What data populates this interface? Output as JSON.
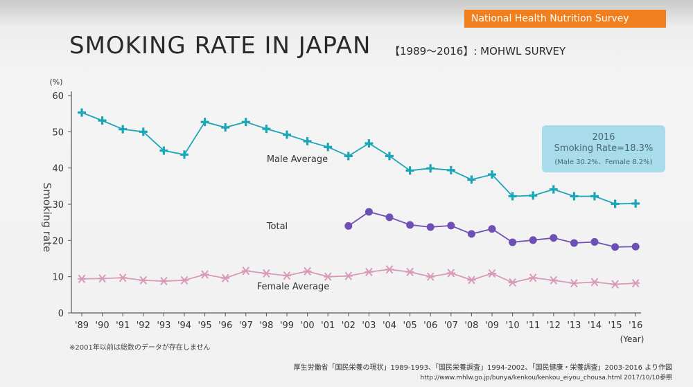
{
  "header": {
    "badge": "National Health Nutrition Survey",
    "title": "SMOKING RATE IN JAPAN",
    "subtitle": "【1989〜2016】: MOHWL  SURVEY"
  },
  "callout": {
    "year": "2016",
    "rate": "Smoking Rate=18.3%",
    "detail": "(Male 30.2%、Female 8.2%)"
  },
  "footer": {
    "note": "※2001年以前は総数のデータが存在しません",
    "source": "厚生労働省「国民栄養の現状」1989-1993、「国民栄養調査」1994-2002、「国民健康・栄養調査」2003-2016 より作図",
    "url": "http://www.mhlw.go.jp/bunya/kenkou/kenkou_eiyou_chousa.html 2017/10/10参照"
  },
  "colors": {
    "male": "#1aa6b7",
    "total": "#6e4fb3",
    "female": "#d79ab8",
    "badge": "#f07f1e"
  },
  "chart_data": {
    "type": "line",
    "title": "SMOKING RATE IN JAPAN",
    "ylabel": "Smoking rate",
    "yunit": "(%)",
    "xlabel": "(Year)",
    "ylim": [
      0,
      60
    ],
    "yticks": [
      0,
      10,
      20,
      30,
      40,
      50,
      60
    ],
    "categories": [
      "'89",
      "'90",
      "'91",
      "'92",
      "'93",
      "'94",
      "'95",
      "'96",
      "'97",
      "'98",
      "'99",
      "'00",
      "'01",
      "'02",
      "'03",
      "'04",
      "'05",
      "'06",
      "'07",
      "'08",
      "'09",
      "'10",
      "'11",
      "'12",
      "'13",
      "'14",
      "'15",
      "'16"
    ],
    "series": [
      {
        "name": "Male Average",
        "label": "Male   Average",
        "marker": "plus",
        "values": [
          55.3,
          53.1,
          50.7,
          50.0,
          44.8,
          43.7,
          52.7,
          51.2,
          52.7,
          50.8,
          49.2,
          47.4,
          45.8,
          43.3,
          46.8,
          43.3,
          39.3,
          39.9,
          39.4,
          36.8,
          38.2,
          32.2,
          32.4,
          34.1,
          32.2,
          32.2,
          30.1,
          30.2
        ]
      },
      {
        "name": "Total",
        "label": "Total",
        "marker": "circle",
        "values": [
          null,
          null,
          null,
          null,
          null,
          null,
          null,
          null,
          null,
          null,
          null,
          null,
          null,
          24.0,
          27.9,
          26.4,
          24.3,
          23.7,
          24.1,
          21.8,
          23.2,
          19.5,
          20.1,
          20.7,
          19.3,
          19.6,
          18.2,
          18.3
        ]
      },
      {
        "name": "Female Average",
        "label": "Female   Average",
        "marker": "asterisk",
        "values": [
          9.4,
          9.5,
          9.7,
          9.0,
          8.8,
          9.0,
          10.6,
          9.6,
          11.6,
          10.9,
          10.3,
          11.5,
          10.0,
          10.2,
          11.3,
          12.0,
          11.3,
          10.0,
          11.0,
          9.1,
          10.9,
          8.4,
          9.7,
          9.0,
          8.2,
          8.5,
          7.9,
          8.2
        ]
      }
    ],
    "legend": "inline labels"
  }
}
